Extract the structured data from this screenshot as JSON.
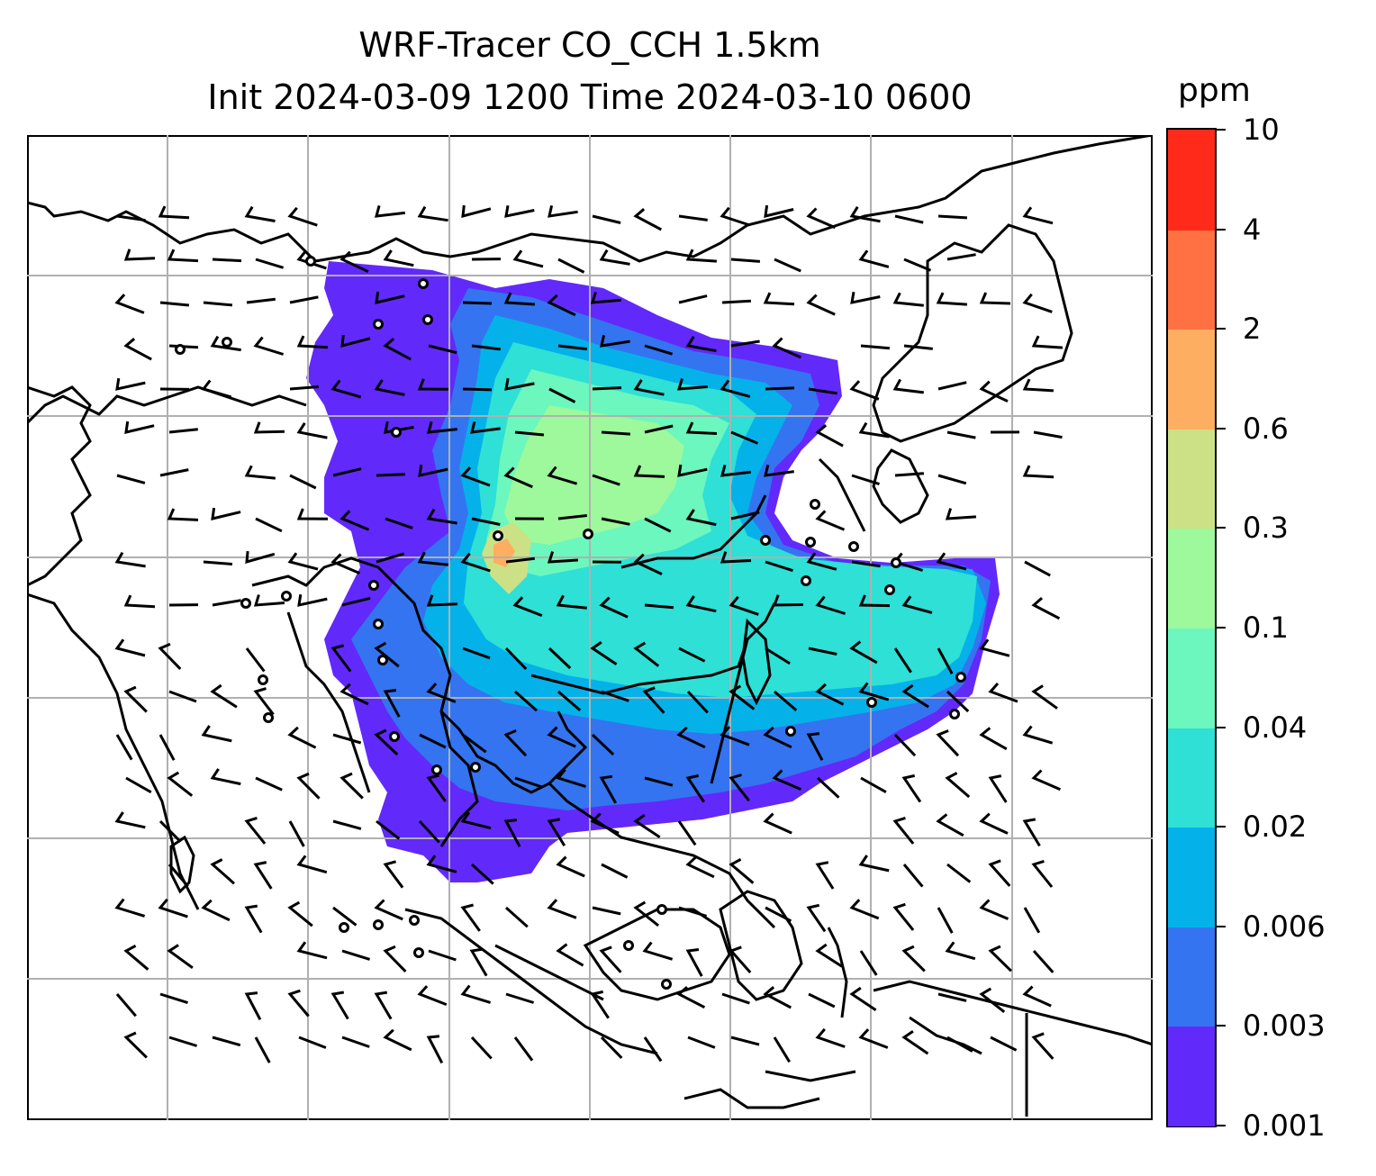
{
  "title": {
    "line1": "WRF-Tracer CO_CCH 1.5km",
    "line2": "Init 2024-03-09 1200 Time 2024-03-10 0600"
  },
  "colorbar": {
    "unit": "ppm",
    "levels": [
      "0.001",
      "0.003",
      "0.006",
      "0.02",
      "0.04",
      "0.1",
      "0.3",
      "0.6",
      "2",
      "4",
      "10"
    ],
    "colors": [
      "#6229fb",
      "#3474f1",
      "#04b2e9",
      "#2ee0d6",
      "#6bf7bd",
      "#9df99b",
      "#cce185",
      "#fdae61",
      "#ff7043",
      "#ff2a1a"
    ]
  },
  "map": {
    "background": "#ffffff",
    "gridline_color": "#b0b0b0",
    "coastline_color": "#000000",
    "barb_color": "#000000"
  }
}
